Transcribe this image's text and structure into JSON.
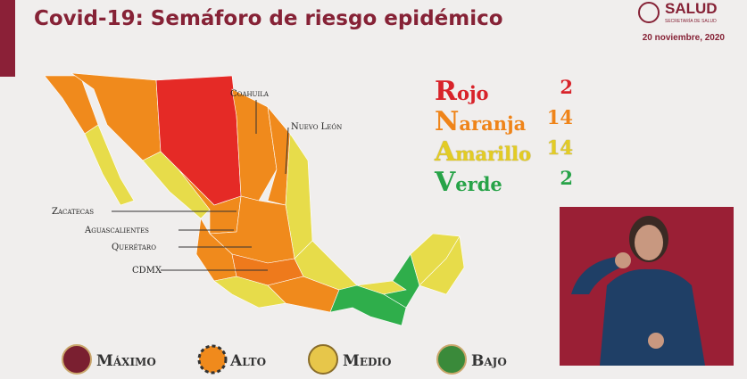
{
  "header": {
    "title": "Covid-19: Semáforo de riesgo epidémico",
    "date": "20 noviembre, 2020",
    "logo": "SALUD",
    "logo_sub": "SECRETARÍA DE SALUD"
  },
  "map_labels": [
    "Coahuila",
    "Nuevo León",
    "Zacatecas",
    "Aguascalientes",
    "Querétaro",
    "CDMX"
  ],
  "counts": [
    {
      "label": "Rojo",
      "count": 2
    },
    {
      "label": "Naranja",
      "count": 14
    },
    {
      "label": "Amarillo",
      "count": 14
    },
    {
      "label": "Verde",
      "count": 2
    }
  ],
  "legend": [
    "Máximo",
    "Alto",
    "Medio",
    "Bajo"
  ]
}
